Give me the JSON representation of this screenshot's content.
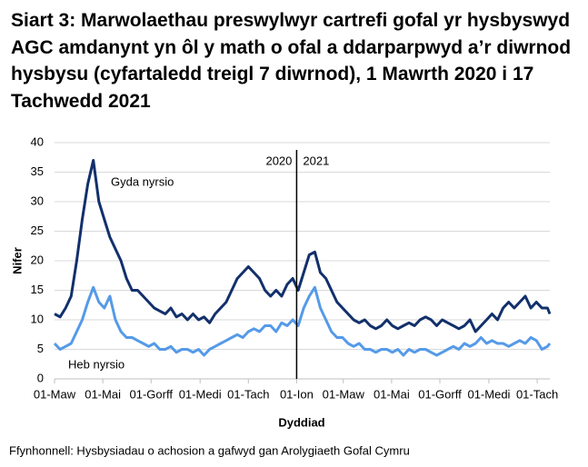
{
  "chart_data": {
    "type": "line",
    "title": "Siart 3: Marwolaethau preswylwyr cartrefi gofal yr hysbyswyd AGC amdanynt yn ôl y math o ofal a ddarparpwyd a’r diwrnod hysbysu (cyfartaledd treigl 7 diwrnod), 1 Mawrth 2020 i 17 Tachwedd 2021",
    "x_label": "Dyddiad",
    "y_label": "Nifer",
    "source": "Ffynhonnell: Hysbysiadau o achosion a gafwyd gan Arolygiaeth Gofal Cymru",
    "annotations": [
      "2020",
      "2021"
    ],
    "x": [
      0,
      7,
      14,
      21,
      28,
      35,
      42,
      49,
      56,
      63,
      70,
      77,
      84,
      91,
      98,
      105,
      112,
      119,
      126,
      133,
      140,
      147,
      154,
      161,
      168,
      175,
      182,
      189,
      196,
      203,
      210,
      217,
      224,
      231,
      238,
      245,
      252,
      259,
      266,
      273,
      280,
      287,
      294,
      301,
      308,
      315,
      322,
      329,
      336,
      343,
      350,
      357,
      364,
      371,
      378,
      385,
      392,
      399,
      406,
      413,
      420,
      427,
      434,
      441,
      448,
      455,
      462,
      469,
      476,
      483,
      490,
      497,
      504,
      511,
      518,
      525,
      532,
      539,
      546,
      553,
      560,
      567,
      574,
      581,
      588,
      595,
      602,
      609,
      616,
      623,
      626
    ],
    "series": [
      {
        "name": "Gyda nyrsio",
        "color": "#12306b",
        "values": [
          11,
          10.5,
          12,
          14,
          20,
          27,
          33,
          37,
          30,
          27,
          24,
          22,
          20,
          17,
          15,
          15,
          14,
          13,
          12,
          11.5,
          11,
          12,
          10.5,
          11,
          10,
          11,
          10,
          10.5,
          9.5,
          11,
          12,
          13,
          15,
          17,
          18,
          19,
          18,
          17,
          15,
          14,
          15,
          14,
          16,
          17,
          15,
          18,
          21,
          21.5,
          18,
          17,
          15,
          13,
          12,
          11,
          10,
          9.5,
          10,
          9,
          8.5,
          9,
          10,
          9,
          8.5,
          9,
          9.5,
          9,
          10,
          10.5,
          10,
          9,
          10,
          9.5,
          9,
          8.5,
          9,
          10,
          8,
          9,
          10,
          11,
          10,
          12,
          13,
          12,
          13,
          14,
          12,
          13,
          12,
          12,
          11
        ]
      },
      {
        "name": "Heb nyrsio",
        "color": "#559ae8",
        "values": [
          6,
          5,
          5.5,
          6,
          8,
          10,
          13,
          15.5,
          13,
          12,
          14,
          10,
          8,
          7,
          7,
          6.5,
          6,
          5.5,
          6,
          5,
          5,
          5.5,
          4.5,
          5,
          5,
          4.5,
          5,
          4,
          5,
          5.5,
          6,
          6.5,
          7,
          7.5,
          7,
          8,
          8.5,
          8,
          9,
          9,
          8,
          9.5,
          9,
          10,
          9,
          12,
          14,
          15.5,
          12,
          10,
          8,
          7,
          7,
          6,
          5.5,
          6,
          5,
          5,
          4.5,
          5,
          5,
          4.5,
          5,
          4,
          5,
          4.5,
          5,
          5,
          4.5,
          4,
          4.5,
          5,
          5.5,
          5,
          6,
          5.5,
          6,
          7,
          6,
          6.5,
          6,
          6,
          5.5,
          6,
          6.5,
          6,
          7,
          6.5,
          5,
          5.5,
          6
        ]
      }
    ],
    "xlim": [
      0,
      626
    ],
    "xticks": [
      {
        "value": 0,
        "label": "01-Maw"
      },
      {
        "value": 61,
        "label": "01-Mai"
      },
      {
        "value": 122,
        "label": "01-Gorff"
      },
      {
        "value": 184,
        "label": "01-Medi"
      },
      {
        "value": 245,
        "label": "01-Tach"
      },
      {
        "value": 306,
        "label": "01-Ion"
      },
      {
        "value": 365,
        "label": "01-Maw"
      },
      {
        "value": 426,
        "label": "01-Mai"
      },
      {
        "value": 487,
        "label": "01-Gorff"
      },
      {
        "value": 549,
        "label": "01-Medi"
      },
      {
        "value": 610,
        "label": "01-Tach"
      }
    ],
    "ylim": [
      0,
      40
    ],
    "yticks": [
      0,
      5,
      10,
      15,
      20,
      25,
      30,
      35,
      40
    ],
    "grid": true
  }
}
